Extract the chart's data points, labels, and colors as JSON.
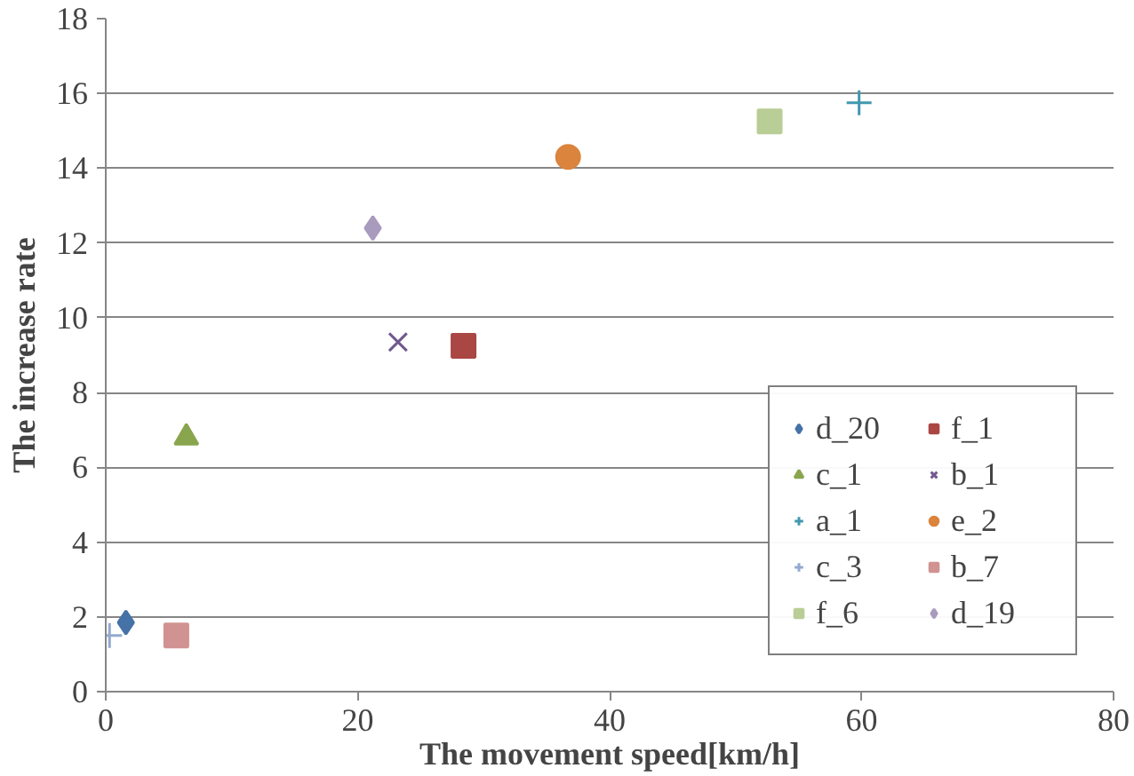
{
  "chart_data": {
    "type": "scatter",
    "xlabel": "The movement speed[km/h]",
    "ylabel": "The increase rate",
    "xlim": [
      0,
      80
    ],
    "xticks": [
      0,
      20,
      40,
      60,
      80
    ],
    "ylim": [
      0,
      18
    ],
    "yticks": [
      0,
      2,
      4,
      6,
      8,
      10,
      12,
      14,
      16,
      18
    ],
    "grid": "y",
    "legend": "bottom right",
    "series": [
      {
        "name": "d_20",
        "color": "#4572a7",
        "marker": "diamond",
        "x": [
          1.6
        ],
        "values": [
          1.85
        ]
      },
      {
        "name": "f_1",
        "color": "#aa4643",
        "marker": "square",
        "x": [
          28.4
        ],
        "values": [
          9.25
        ]
      },
      {
        "name": "c_1",
        "color": "#89a54e",
        "marker": "triangle",
        "x": [
          6.4
        ],
        "values": [
          6.8
        ]
      },
      {
        "name": "b_1",
        "color": "#71588f",
        "marker": "x",
        "x": [
          23.2
        ],
        "values": [
          9.35
        ]
      },
      {
        "name": "a_1",
        "color": "#4198af",
        "marker": "cross",
        "x": [
          59.8
        ],
        "values": [
          15.75
        ]
      },
      {
        "name": "e_2",
        "color": "#db843d",
        "marker": "circle",
        "x": [
          36.7
        ],
        "values": [
          14.3
        ]
      },
      {
        "name": "c_3",
        "color": "#93a9cf",
        "marker": "cross",
        "x": [
          0.3
        ],
        "values": [
          1.5
        ]
      },
      {
        "name": "b_7",
        "color": "#d19392",
        "marker": "square",
        "x": [
          5.6
        ],
        "values": [
          1.5
        ]
      },
      {
        "name": "f_6",
        "color": "#b9cd96",
        "marker": "square",
        "x": [
          52.7
        ],
        "values": [
          15.25
        ]
      },
      {
        "name": "d_19",
        "color": "#a99bbd",
        "marker": "diamond",
        "x": [
          21.2
        ],
        "values": [
          12.4
        ]
      }
    ]
  }
}
